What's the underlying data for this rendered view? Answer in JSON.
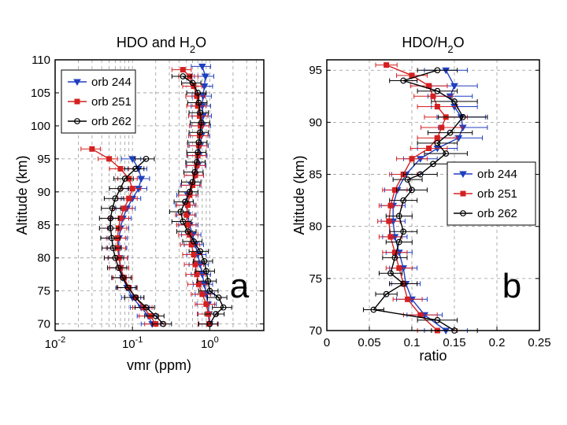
{
  "chart_data": [
    {
      "id": "a",
      "type": "line",
      "title": "HDO and H",
      "title_sub": "2",
      "title_tail": "O",
      "xlabel": "vmr (ppm)",
      "ylabel": "Altitude (km)",
      "xscale": "log",
      "xlim": [
        0.01,
        5
      ],
      "ylim": [
        69,
        110
      ],
      "xticks": [
        {
          "v": 0.01,
          "base": "10",
          "exp": "-2"
        },
        {
          "v": 0.1,
          "base": "10",
          "exp": "-1"
        },
        {
          "v": 1,
          "base": "10",
          "exp": "0"
        }
      ],
      "yticks": [
        70,
        75,
        80,
        85,
        90,
        95,
        100,
        105,
        110
      ],
      "grid": true,
      "panel_letter": "a",
      "legend_position": "top-left",
      "series": [
        {
          "name": "orb 244",
          "color": "#1f3fbf",
          "marker": "triangle",
          "hdo": [
            [
              0.18,
              70
            ],
            [
              0.16,
              71.2
            ],
            [
              0.13,
              72.5
            ],
            [
              0.1,
              74
            ],
            [
              0.085,
              75.5
            ],
            [
              0.075,
              77
            ],
            [
              0.07,
              78.5
            ],
            [
              0.068,
              80
            ],
            [
              0.066,
              81.5
            ],
            [
              0.067,
              83
            ],
            [
              0.07,
              84.5
            ],
            [
              0.075,
              86
            ],
            [
              0.085,
              87.5
            ],
            [
              0.1,
              89
            ],
            [
              0.12,
              90.5
            ],
            [
              0.13,
              92
            ],
            [
              0.12,
              93.5
            ],
            [
              0.1,
              95
            ]
          ],
          "h2o": [
            [
              1.0,
              70
            ],
            [
              0.98,
              71.5
            ],
            [
              0.95,
              73
            ],
            [
              0.9,
              74.5
            ],
            [
              0.85,
              76
            ],
            [
              0.8,
              77.5
            ],
            [
              0.75,
              79
            ],
            [
              0.7,
              80.5
            ],
            [
              0.65,
              82
            ],
            [
              0.6,
              83.5
            ],
            [
              0.55,
              85
            ],
            [
              0.52,
              86.5
            ],
            [
              0.5,
              88
            ],
            [
              0.52,
              89.5
            ],
            [
              0.58,
              91
            ],
            [
              0.65,
              92.5
            ],
            [
              0.7,
              94
            ],
            [
              0.72,
              95.5
            ],
            [
              0.75,
              97
            ],
            [
              0.78,
              98.5
            ],
            [
              0.8,
              100
            ],
            [
              0.82,
              101.5
            ],
            [
              0.8,
              103
            ],
            [
              0.82,
              104.5
            ],
            [
              0.85,
              106
            ],
            [
              0.88,
              107.5
            ],
            [
              0.8,
              109
            ]
          ]
        },
        {
          "name": "orb 251",
          "color": "#d42020",
          "marker": "square",
          "hdo": [
            [
              0.2,
              70
            ],
            [
              0.17,
              71.2
            ],
            [
              0.14,
              72.5
            ],
            [
              0.11,
              74
            ],
            [
              0.09,
              75.5
            ],
            [
              0.078,
              77
            ],
            [
              0.07,
              78.5
            ],
            [
              0.067,
              80
            ],
            [
              0.064,
              81.5
            ],
            [
              0.064,
              83
            ],
            [
              0.066,
              84.5
            ],
            [
              0.07,
              86
            ],
            [
              0.078,
              87.5
            ],
            [
              0.09,
              89
            ],
            [
              0.1,
              90.5
            ],
            [
              0.09,
              92
            ],
            [
              0.07,
              93.5
            ],
            [
              0.05,
              95
            ],
            [
              0.03,
              96.5
            ]
          ],
          "h2o": [
            [
              0.98,
              70
            ],
            [
              0.96,
              71.5
            ],
            [
              0.9,
              73
            ],
            [
              0.8,
              74.5
            ],
            [
              0.72,
              76
            ],
            [
              0.68,
              77.5
            ],
            [
              0.65,
              79
            ],
            [
              0.62,
              80.5
            ],
            [
              0.58,
              82
            ],
            [
              0.55,
              83.5
            ],
            [
              0.52,
              85
            ],
            [
              0.5,
              86.5
            ],
            [
              0.52,
              88
            ],
            [
              0.55,
              89.5
            ],
            [
              0.6,
              91
            ],
            [
              0.65,
              92.5
            ],
            [
              0.68,
              94
            ],
            [
              0.7,
              95.5
            ],
            [
              0.72,
              97
            ],
            [
              0.74,
              98.5
            ],
            [
              0.76,
              100
            ],
            [
              0.74,
              101.5
            ],
            [
              0.7,
              103
            ],
            [
              0.68,
              104.5
            ],
            [
              0.62,
              106
            ],
            [
              0.55,
              107.5
            ],
            [
              0.45,
              108.5
            ]
          ]
        },
        {
          "name": "orb 262",
          "color": "#000000",
          "marker": "circle",
          "hdo": [
            [
              0.25,
              70
            ],
            [
              0.2,
              71.2
            ],
            [
              0.15,
              72.5
            ],
            [
              0.11,
              74
            ],
            [
              0.088,
              75.5
            ],
            [
              0.075,
              77
            ],
            [
              0.066,
              78.5
            ],
            [
              0.06,
              80
            ],
            [
              0.056,
              81.5
            ],
            [
              0.054,
              83
            ],
            [
              0.052,
              84.5
            ],
            [
              0.052,
              86
            ],
            [
              0.055,
              87.5
            ],
            [
              0.06,
              89
            ],
            [
              0.07,
              90.5
            ],
            [
              0.08,
              92
            ],
            [
              0.11,
              93.5
            ],
            [
              0.15,
              95
            ]
          ],
          "h2o": [
            [
              1.0,
              70
            ],
            [
              1.2,
              71.5
            ],
            [
              1.5,
              72.5
            ],
            [
              1.3,
              74
            ],
            [
              1.0,
              75
            ],
            [
              0.95,
              76.5
            ],
            [
              0.9,
              78
            ],
            [
              0.85,
              79.5
            ],
            [
              0.75,
              81
            ],
            [
              0.62,
              82.5
            ],
            [
              0.52,
              84
            ],
            [
              0.45,
              85.5
            ],
            [
              0.42,
              87
            ],
            [
              0.48,
              88.5
            ],
            [
              0.55,
              90
            ],
            [
              0.6,
              91.5
            ],
            [
              0.64,
              93
            ],
            [
              0.68,
              94.5
            ],
            [
              0.7,
              96
            ],
            [
              0.72,
              97.5
            ],
            [
              0.75,
              99
            ],
            [
              0.78,
              100.5
            ],
            [
              0.75,
              102
            ],
            [
              0.72,
              103.5
            ],
            [
              0.7,
              105
            ],
            [
              0.6,
              106.5
            ],
            [
              0.45,
              107.5
            ]
          ]
        }
      ]
    },
    {
      "id": "b",
      "type": "line",
      "title": "HDO/H",
      "title_sub": "2",
      "title_tail": "O",
      "xlabel": "ratio",
      "ylabel": "Altitude (km)",
      "xscale": "linear",
      "xlim": [
        0,
        0.25
      ],
      "ylim": [
        70,
        96
      ],
      "xticks": [
        {
          "v": 0,
          "label": "0"
        },
        {
          "v": 0.05,
          "label": "0.05"
        },
        {
          "v": 0.1,
          "label": "0.1"
        },
        {
          "v": 0.15,
          "label": "0.15"
        },
        {
          "v": 0.2,
          "label": "0.2"
        },
        {
          "v": 0.25,
          "label": "0.25"
        }
      ],
      "yticks": [
        70,
        75,
        80,
        85,
        90,
        95
      ],
      "grid": true,
      "panel_letter": "b",
      "legend_position": "center-right",
      "series": [
        {
          "name": "orb 244",
          "color": "#1f3fbf",
          "marker": "triangle",
          "points": [
            [
              0.14,
              70
            ],
            [
              0.115,
              71.5
            ],
            [
              0.1,
              73
            ],
            [
              0.093,
              74.5
            ],
            [
              0.09,
              76
            ],
            [
              0.085,
              77.5
            ],
            [
              0.08,
              79
            ],
            [
              0.078,
              80.5
            ],
            [
              0.078,
              82
            ],
            [
              0.083,
              83.5
            ],
            [
              0.093,
              85
            ],
            [
              0.11,
              86.5
            ],
            [
              0.13,
              87.5
            ],
            [
              0.155,
              88.5
            ],
            [
              0.16,
              89.5
            ],
            [
              0.158,
              90.5
            ],
            [
              0.15,
              91.5
            ],
            [
              0.145,
              92.5
            ],
            [
              0.15,
              93.5
            ],
            [
              0.14,
              95
            ]
          ]
        },
        {
          "name": "orb 251",
          "color": "#d42020",
          "marker": "square",
          "points": [
            [
              0.13,
              70
            ],
            [
              0.11,
              71.5
            ],
            [
              0.095,
              73
            ],
            [
              0.09,
              74.5
            ],
            [
              0.085,
              76
            ],
            [
              0.08,
              77.5
            ],
            [
              0.075,
              79
            ],
            [
              0.073,
              80.5
            ],
            [
              0.075,
              82
            ],
            [
              0.08,
              83.5
            ],
            [
              0.09,
              85
            ],
            [
              0.1,
              86.5
            ],
            [
              0.12,
              87.5
            ],
            [
              0.13,
              88.5
            ],
            [
              0.135,
              89.5
            ],
            [
              0.14,
              90.5
            ],
            [
              0.13,
              91.5
            ],
            [
              0.125,
              92.5
            ],
            [
              0.12,
              93.5
            ],
            [
              0.1,
              94.5
            ],
            [
              0.07,
              95.5
            ]
          ]
        },
        {
          "name": "orb 262",
          "color": "#000000",
          "marker": "circle",
          "points": [
            [
              0.15,
              70
            ],
            [
              0.13,
              71
            ],
            [
              0.055,
              72
            ],
            [
              0.07,
              73.5
            ],
            [
              0.09,
              74.5
            ],
            [
              0.075,
              75.5
            ],
            [
              0.08,
              77
            ],
            [
              0.085,
              78.5
            ],
            [
              0.09,
              79.5
            ],
            [
              0.085,
              81
            ],
            [
              0.09,
              82.5
            ],
            [
              0.1,
              83.5
            ],
            [
              0.095,
              84.5
            ],
            [
              0.11,
              85
            ],
            [
              0.125,
              86
            ],
            [
              0.14,
              87
            ],
            [
              0.13,
              88
            ],
            [
              0.145,
              89
            ],
            [
              0.16,
              90.5
            ],
            [
              0.15,
              92
            ],
            [
              0.13,
              93
            ],
            [
              0.09,
              94
            ],
            [
              0.13,
              95
            ]
          ]
        }
      ]
    }
  ]
}
